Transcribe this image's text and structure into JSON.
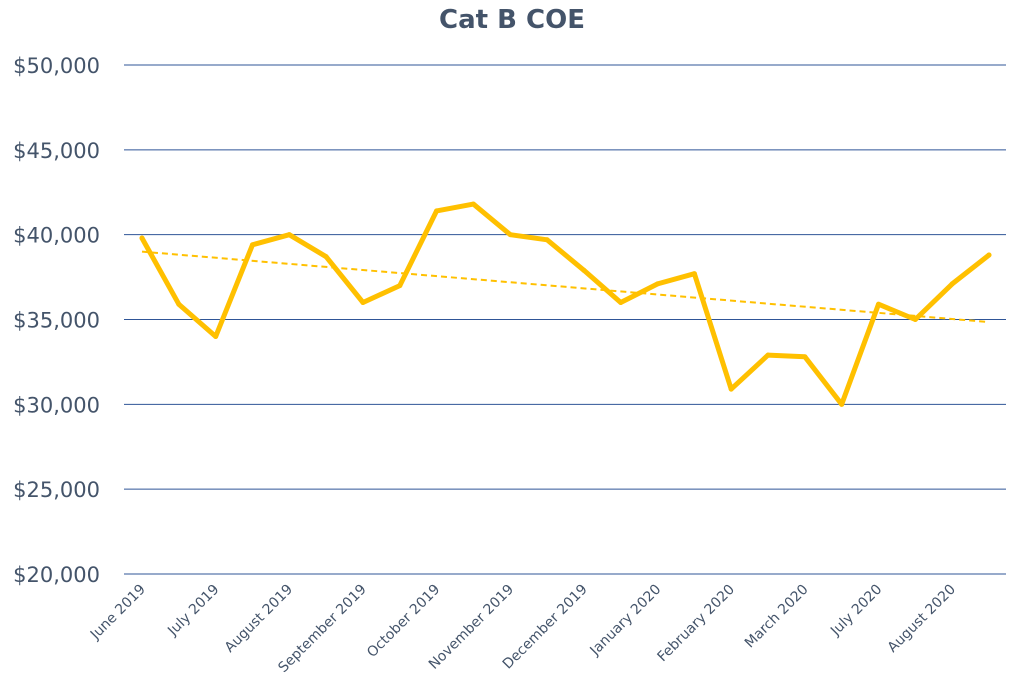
{
  "chart_data": {
    "type": "line",
    "title": "Cat B COE",
    "xlabel": "",
    "ylabel": "",
    "ylim": [
      20000,
      50000
    ],
    "yticks": [
      20000,
      25000,
      30000,
      35000,
      40000,
      45000,
      50000
    ],
    "ytick_labels": [
      "$20,000",
      "$25,000",
      "$30,000",
      "$35,000",
      "$40,000",
      "$45,000",
      "$50,000"
    ],
    "x_tick_labels": [
      "June 2019",
      "July 2019",
      "August 2019",
      "September 2019",
      "October 2019",
      "November 2019",
      "December 2019",
      "January 2020",
      "February 2020",
      "March 2020",
      "July 2020",
      "August 2020"
    ],
    "grid": true,
    "legend": "none",
    "series": [
      {
        "values": [
          39800,
          35900,
          34000,
          39400,
          40000,
          38700,
          36000,
          37000,
          41400,
          41800,
          40000,
          39700,
          37900,
          36000,
          37100,
          37700,
          30900,
          32900,
          32800,
          30000,
          35900,
          35000,
          37100,
          38800
        ],
        "color": "#ffc000"
      }
    ],
    "trendline": {
      "type": "linear",
      "start": 39000,
      "end": 34850,
      "color": "#ffc000",
      "style": "dashed"
    },
    "gridline_color": "#2f5597"
  }
}
